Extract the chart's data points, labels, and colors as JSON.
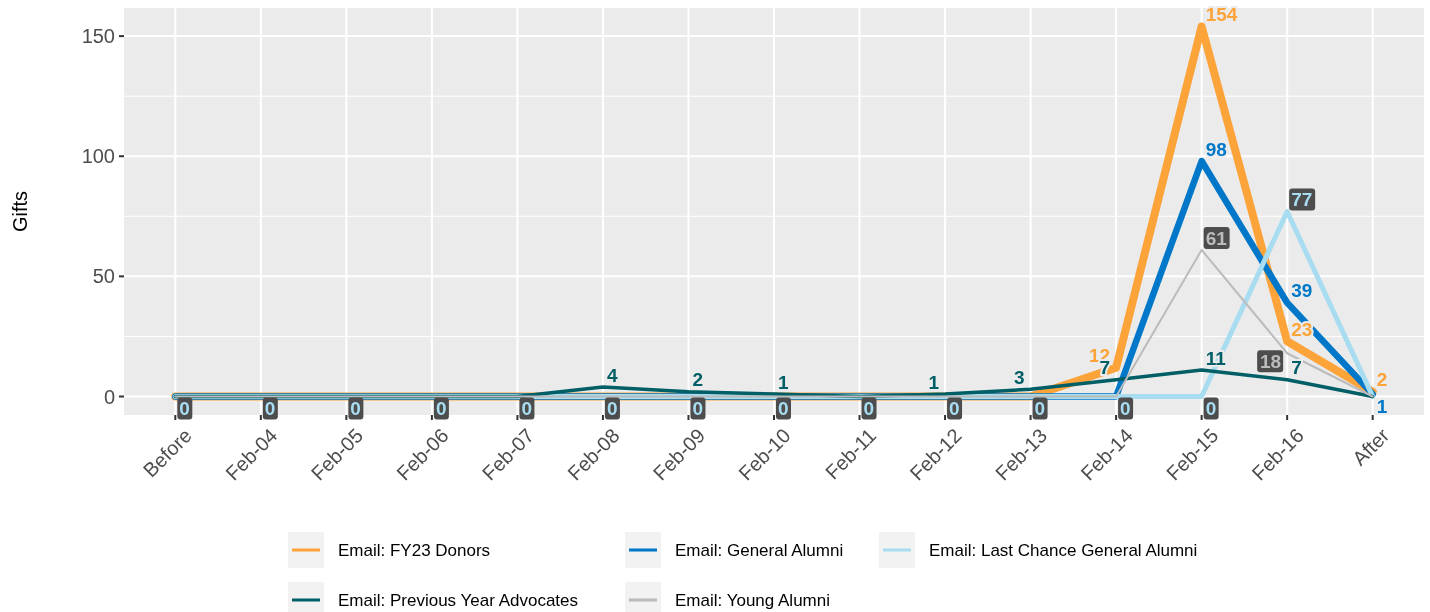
{
  "chart_data": {
    "type": "line",
    "ylabel": "Gifts",
    "categories": [
      "Before",
      "Feb-04",
      "Feb-05",
      "Feb-06",
      "Feb-07",
      "Feb-08",
      "Feb-09",
      "Feb-10",
      "Feb-11",
      "Feb-12",
      "Feb-13",
      "Feb-14",
      "Feb-15",
      "Feb-16",
      "After"
    ],
    "ylim": [
      -7.7,
      161.7
    ],
    "yticks": [
      0,
      50,
      100,
      150
    ],
    "grid": true,
    "legend": "bottom",
    "marker": "none",
    "line_style": "solid",
    "series": [
      {
        "name": "Email: FY23 Donors",
        "color": "#fca33a",
        "values": [
          0,
          0,
          0,
          0,
          0,
          0,
          0,
          0,
          0,
          0,
          0,
          12,
          154,
          23,
          2
        ],
        "value_labels": [
          null,
          null,
          null,
          null,
          null,
          null,
          null,
          null,
          null,
          null,
          null,
          "12",
          "154",
          "23",
          "2"
        ]
      },
      {
        "name": "Email: General Alumni",
        "color": "#0077c8",
        "values": [
          0,
          0,
          0,
          0,
          0,
          0,
          0,
          0,
          0,
          0,
          0,
          0,
          98,
          39,
          1
        ],
        "value_labels": [
          null,
          null,
          null,
          null,
          null,
          null,
          null,
          null,
          null,
          null,
          null,
          null,
          "98",
          "39",
          "1"
        ]
      },
      {
        "name": "Email: Last Chance General Alumni",
        "color": "#a8dcf0",
        "values": [
          0,
          0,
          0,
          0,
          0,
          0,
          0,
          0,
          0,
          0,
          0,
          0,
          0,
          77,
          0
        ],
        "value_labels": [
          "0",
          "0",
          "0",
          "0",
          "0",
          "0",
          "0",
          "0",
          "0",
          "0",
          "0",
          "0",
          "0",
          "77",
          null
        ]
      },
      {
        "name": "Email: Previous Year Advocates",
        "color": "#005f66",
        "values": [
          0,
          0,
          0,
          0,
          0,
          4,
          2,
          1,
          0,
          1,
          3,
          7,
          11,
          7,
          0
        ],
        "value_labels": [
          null,
          null,
          null,
          null,
          null,
          "4",
          "2",
          "1",
          null,
          "1",
          "3",
          "7",
          "11",
          "7",
          null
        ]
      },
      {
        "name": "Email: Young Alumni",
        "color": "#bbbbbb",
        "values": [
          0,
          0,
          0,
          0,
          0,
          0,
          0,
          0,
          0,
          0,
          0,
          0,
          61,
          18,
          0
        ],
        "value_labels": [
          null,
          null,
          null,
          null,
          null,
          null,
          null,
          null,
          null,
          null,
          null,
          null,
          "61",
          "18",
          null
        ]
      }
    ]
  }
}
